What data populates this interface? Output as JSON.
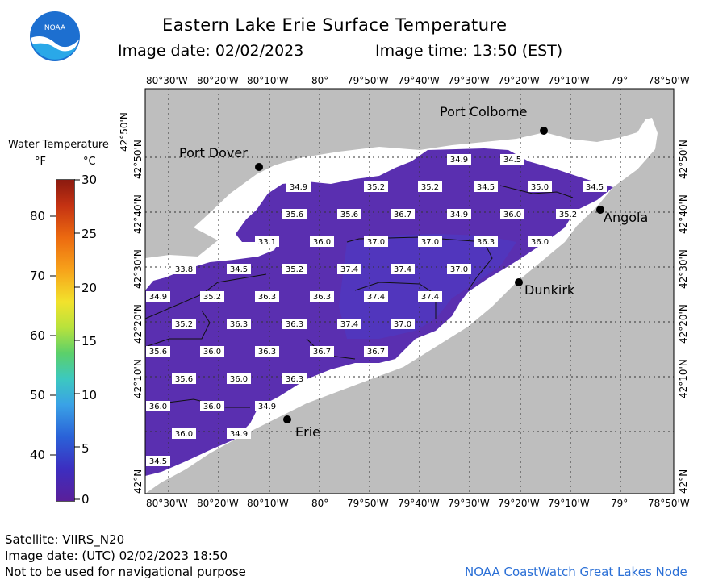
{
  "header": {
    "title": "Eastern Lake Erie Surface Temperature",
    "image_date_label": "Image date: 02/02/2023",
    "image_time_label": "Image time: 13:50 (EST)"
  },
  "logo": {
    "text": "NOAA"
  },
  "legend": {
    "title": "Water Temperature",
    "unit_f": "°F",
    "unit_c": "°C",
    "f_ticks": [
      "80",
      "70",
      "60",
      "50",
      "40"
    ],
    "c_ticks": [
      "30",
      "25",
      "20",
      "15",
      "10",
      "5",
      "0"
    ]
  },
  "axes": {
    "lon_labels": [
      "80°30'W",
      "80°20'W",
      "80°10'W",
      "80°",
      "79°50'W",
      "79°40'W",
      "79°30'W",
      "79°20'W",
      "79°10'W",
      "79°",
      "78°50'W"
    ],
    "lat_labels": [
      "42°50'N",
      "42°40'N",
      "42°30'N",
      "42°20'N",
      "42°10'N",
      "42°N"
    ]
  },
  "places": {
    "port_colborne": "Port Colborne",
    "port_dover": "Port Dover",
    "angola": "Angola",
    "dunkirk": "Dunkirk",
    "erie": "Erie"
  },
  "temps": [
    "34.9",
    "34.5",
    "34.9",
    "35.2",
    "35.2",
    "34.5",
    "35.0",
    "34.5",
    "35.6",
    "35.6",
    "36.7",
    "34.9",
    "36.0",
    "35.2",
    "33.1",
    "36.0",
    "37.0",
    "37.0",
    "36.3",
    "36.0",
    "33.8",
    "34.5",
    "35.2",
    "37.4",
    "37.4",
    "37.0",
    "34.9",
    "35.2",
    "36.3",
    "36.3",
    "37.4",
    "37.4",
    "35.2",
    "36.3",
    "36.3",
    "37.4",
    "37.0",
    "35.6",
    "36.0",
    "36.3",
    "36.7",
    "36.7",
    "35.6",
    "36.0",
    "36.3",
    "36.0",
    "36.0",
    "34.9",
    "36.0",
    "34.9",
    "34.5"
  ],
  "footer": {
    "satellite": "Satellite: VIIRS_N20",
    "utc_date": "Image date: (UTC) 02/02/2023  18:50",
    "disclaimer": "Not to be used for navigational purpose",
    "credit": "NOAA CoastWatch Great Lakes Node"
  },
  "colors": {
    "land": "#bebebe",
    "ice": "#ffffff",
    "water": "#5a2fb0"
  }
}
